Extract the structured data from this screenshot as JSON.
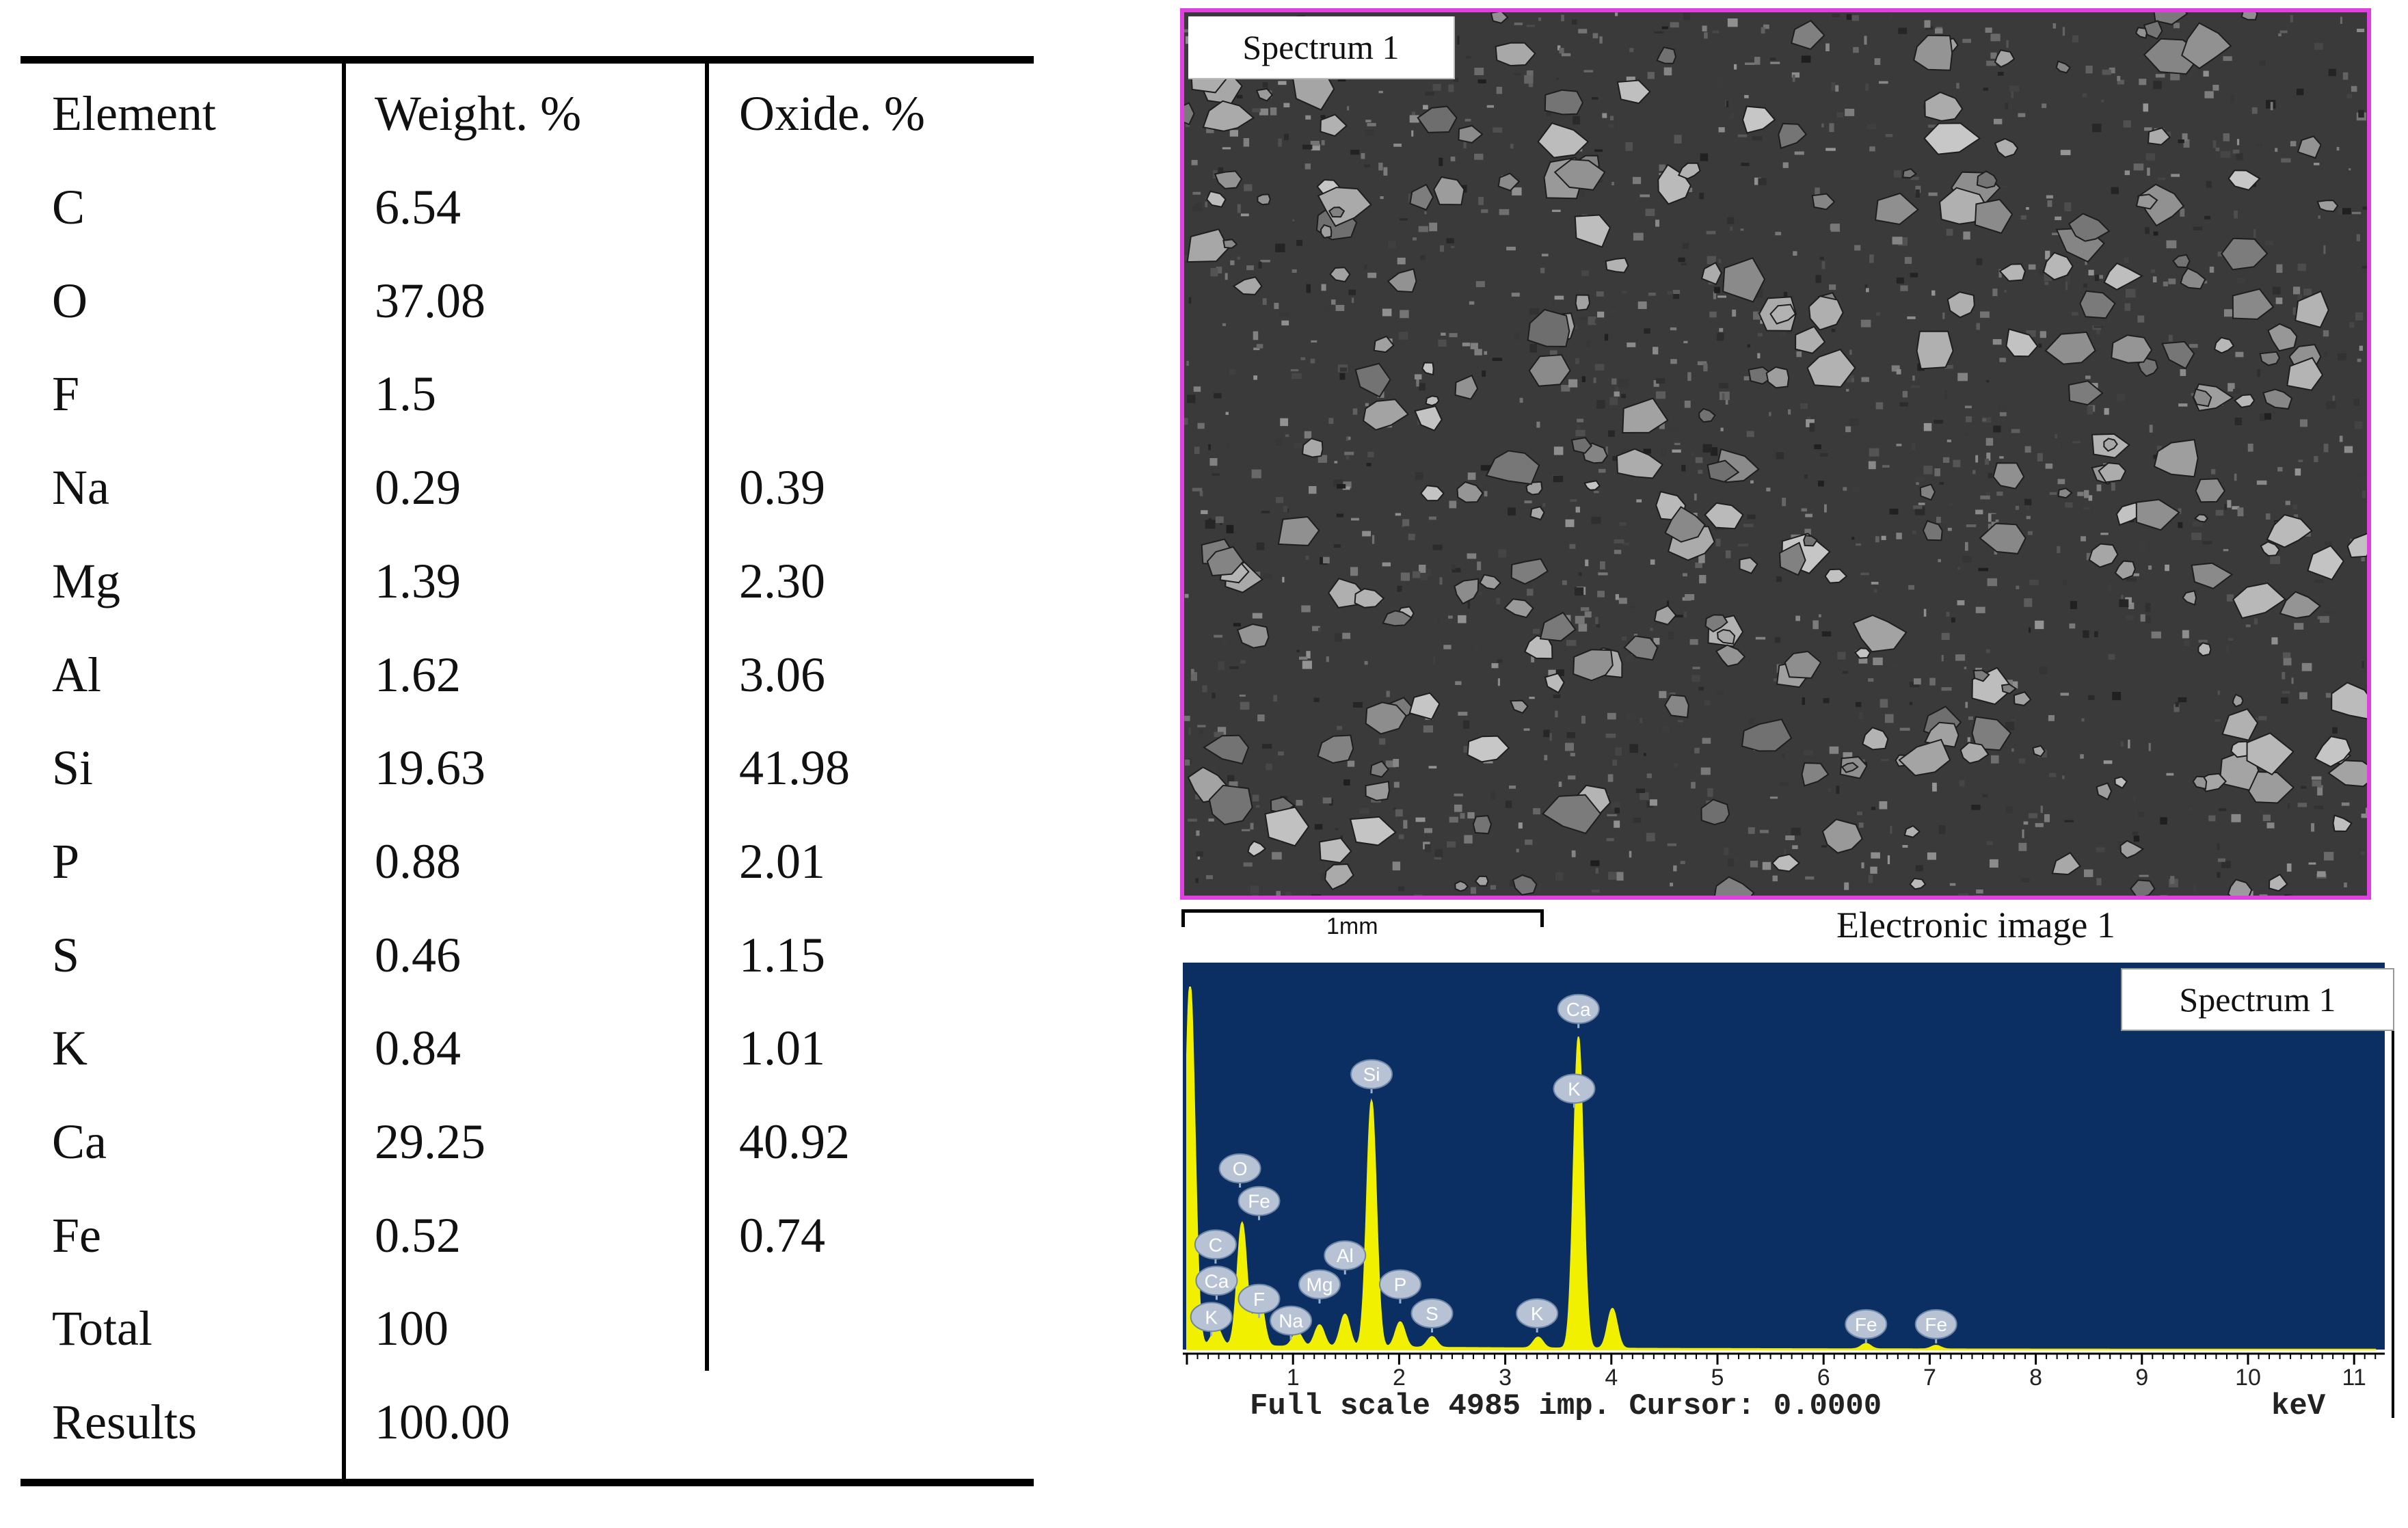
{
  "table": {
    "headers": {
      "element": "Element",
      "weight": "Weight. %",
      "oxide": "Oxide. %"
    },
    "rows": [
      {
        "element": "C",
        "weight": "6.54",
        "oxide": ""
      },
      {
        "element": "O",
        "weight": "37.08",
        "oxide": ""
      },
      {
        "element": "F",
        "weight": "1.5",
        "oxide": ""
      },
      {
        "element": "Na",
        "weight": "0.29",
        "oxide": "0.39"
      },
      {
        "element": "Mg",
        "weight": "1.39",
        "oxide": "2.30"
      },
      {
        "element": "Al",
        "weight": "1.62",
        "oxide": "3.06"
      },
      {
        "element": "Si",
        "weight": "19.63",
        "oxide": "41.98"
      },
      {
        "element": "P",
        "weight": "0.88",
        "oxide": "2.01"
      },
      {
        "element": "S",
        "weight": "0.46",
        "oxide": "1.15"
      },
      {
        "element": "K",
        "weight": "0.84",
        "oxide": "1.01"
      },
      {
        "element": "Ca",
        "weight": "29.25",
        "oxide": "40.92"
      },
      {
        "element": "Fe",
        "weight": "0.52",
        "oxide": "0.74"
      },
      {
        "element": "Total",
        "weight": "100",
        "oxide": ""
      },
      {
        "element": "Results",
        "weight": "100.00",
        "oxide": ""
      }
    ]
  },
  "micrograph": {
    "label": "Spectrum 1",
    "scale_bar": "1mm",
    "caption": "Electronic image 1",
    "frame_color": "#e040e0"
  },
  "chart_data": {
    "type": "line",
    "label": "Spectrum 1",
    "xlabel": "keV",
    "xlim": [
      0,
      11.2
    ],
    "x_ticks": [
      "1",
      "2",
      "3",
      "4",
      "5",
      "6",
      "7",
      "8",
      "9",
      "10",
      "11"
    ],
    "background_color": "#0b2e63",
    "line_color": "#f0f000",
    "footer": "Full scale 4985 imp. Cursor: 0.0000",
    "peaks": [
      {
        "x": 0.03,
        "height": 1.0
      },
      {
        "x": 0.28,
        "height": 0.05
      },
      {
        "x": 0.52,
        "height": 0.34
      },
      {
        "x": 0.68,
        "height": 0.14
      },
      {
        "x": 1.04,
        "height": 0.04
      },
      {
        "x": 1.25,
        "height": 0.06
      },
      {
        "x": 1.49,
        "height": 0.09
      },
      {
        "x": 1.74,
        "height": 0.68
      },
      {
        "x": 2.01,
        "height": 0.07
      },
      {
        "x": 2.31,
        "height": 0.03
      },
      {
        "x": 3.31,
        "height": 0.03
      },
      {
        "x": 3.69,
        "height": 0.86
      },
      {
        "x": 4.01,
        "height": 0.11
      },
      {
        "x": 6.4,
        "height": 0.015
      },
      {
        "x": 7.06,
        "height": 0.01
      }
    ],
    "annotations": [
      {
        "text": "Ca",
        "x": 3.69,
        "level": 0.94
      },
      {
        "text": "Si",
        "x": 1.74,
        "level": 0.76
      },
      {
        "text": "K",
        "x": 3.65,
        "level": 0.72
      },
      {
        "text": "O",
        "x": 0.5,
        "level": 0.5
      },
      {
        "text": "Fe",
        "x": 0.68,
        "level": 0.41
      },
      {
        "text": "C",
        "x": 0.27,
        "level": 0.29
      },
      {
        "text": "Al",
        "x": 1.49,
        "level": 0.26
      },
      {
        "text": "Ca",
        "x": 0.28,
        "level": 0.19
      },
      {
        "text": "Mg",
        "x": 1.25,
        "level": 0.18
      },
      {
        "text": "P",
        "x": 2.01,
        "level": 0.18
      },
      {
        "text": "F",
        "x": 0.68,
        "level": 0.14
      },
      {
        "text": "K",
        "x": 0.23,
        "level": 0.09
      },
      {
        "text": "Na",
        "x": 0.98,
        "level": 0.08
      },
      {
        "text": "S",
        "x": 2.31,
        "level": 0.1
      },
      {
        "text": "K",
        "x": 3.3,
        "level": 0.1
      },
      {
        "text": "Fe",
        "x": 6.4,
        "level": 0.07
      },
      {
        "text": "Fe",
        "x": 7.06,
        "level": 0.07
      }
    ]
  }
}
